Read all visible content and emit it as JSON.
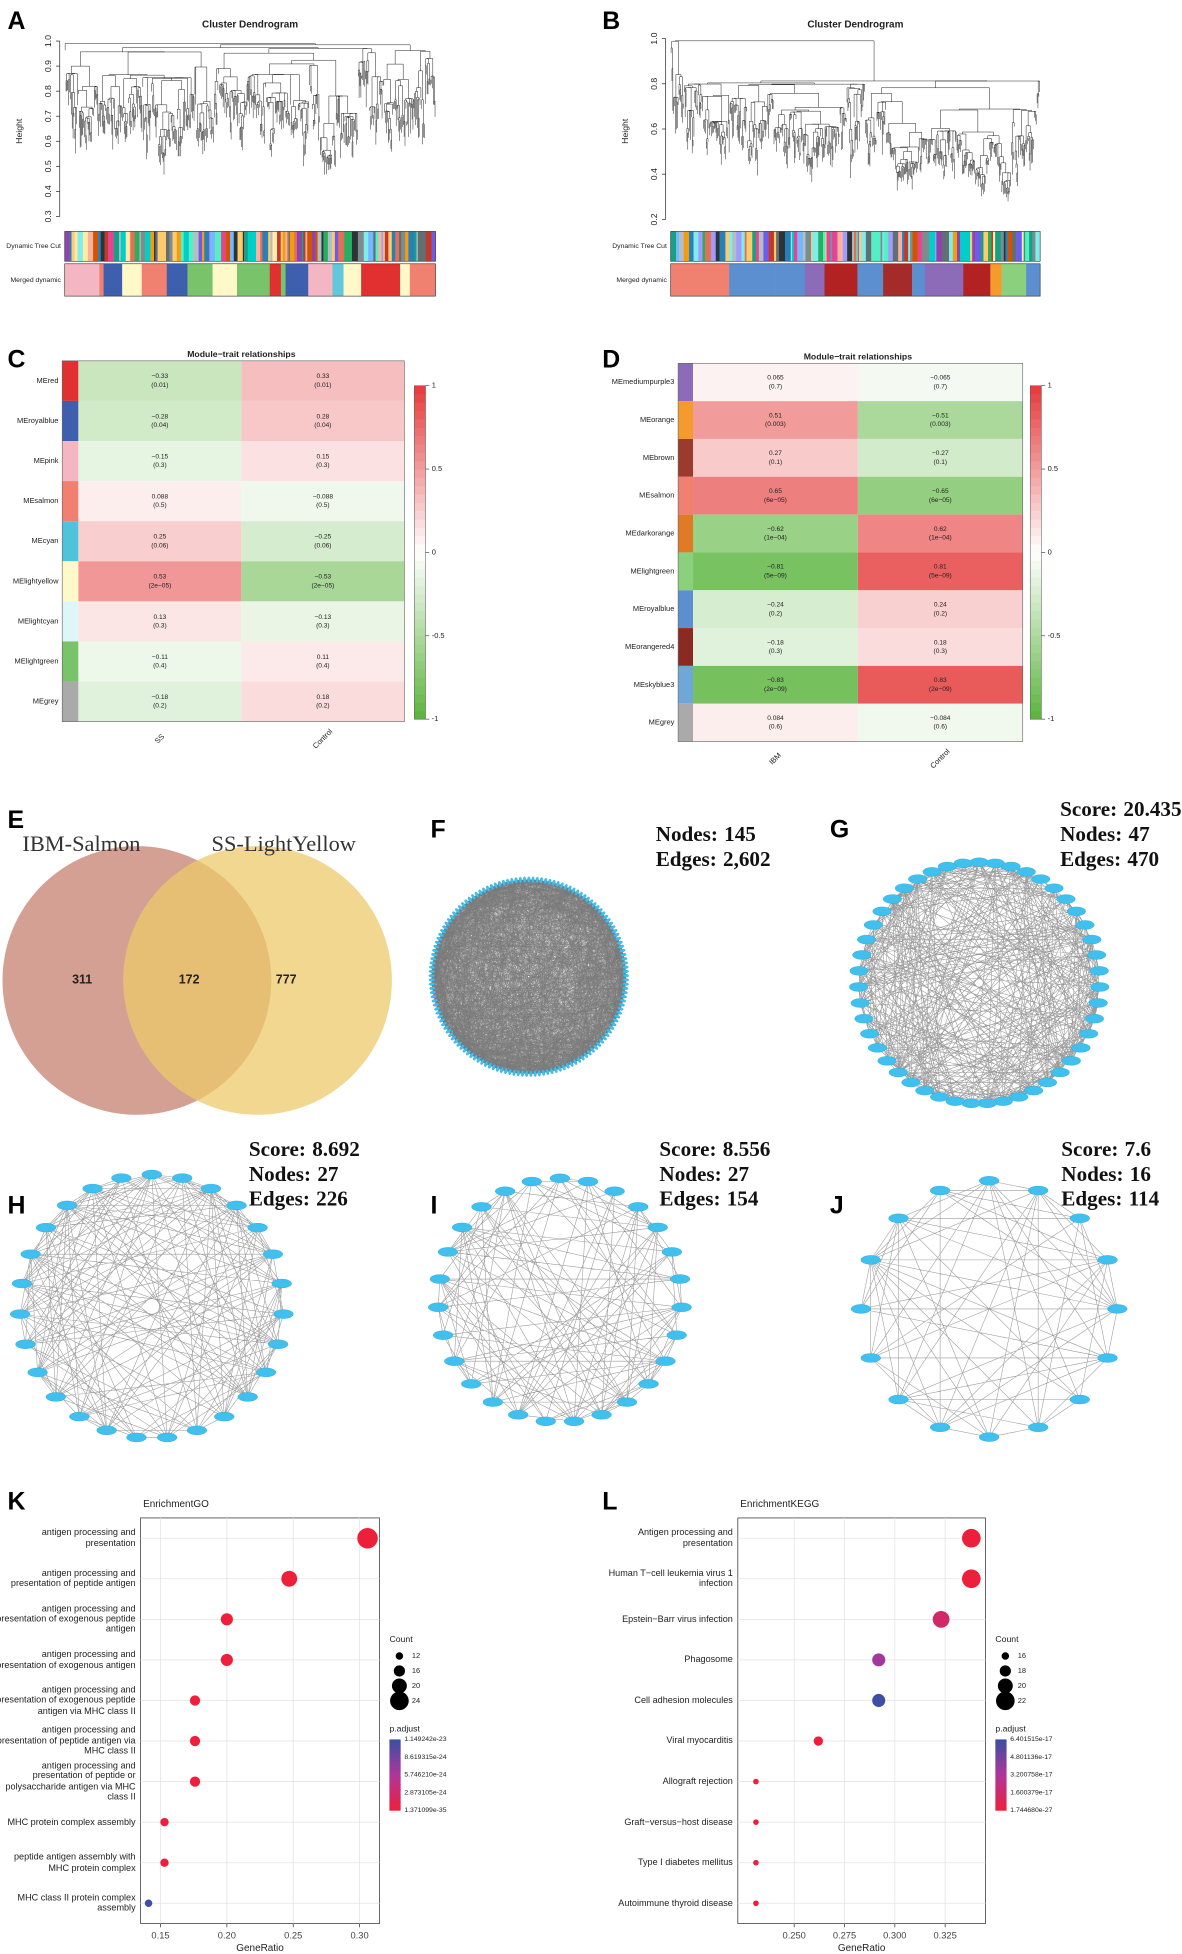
{
  "panels": [
    "A",
    "B",
    "C",
    "D",
    "E",
    "F",
    "G",
    "H",
    "I",
    "J",
    "K",
    "L"
  ],
  "dendrograms": [
    {
      "title": "Cluster Dendrogram",
      "ylabel": "Height",
      "ylim": [
        0.28,
        1.0
      ],
      "yticks": [
        0.3,
        0.4,
        0.5,
        0.6,
        0.7,
        0.8,
        0.9,
        {
          "value": 1.0,
          "label": "1.0"
        }
      ],
      "rows": [
        "Dynamic Tree Cut",
        "Merged dynamic"
      ]
    },
    {
      "title": "Cluster Dendrogram",
      "ylabel": "Height",
      "ylim": [
        0.18,
        1.0
      ],
      "yticks": [
        0.2,
        0.4,
        0.6,
        0.8,
        {
          "value": 1.0,
          "label": "1.0"
        }
      ],
      "rows": [
        "Dynamic Tree Cut",
        "Merged dynamic"
      ]
    }
  ],
  "chart_data": [
    {
      "type": "heatmap",
      "title": "Module−trait relationships",
      "rows": [
        "MEred",
        "MEroyalblue",
        "MEpink",
        "MEsalmon",
        "MEcyan",
        "MElightyellow",
        "MElightcyan",
        "MElightgreen",
        "MEgrey"
      ],
      "row_colors": [
        "#e0302f",
        "#3d5fae",
        "#f4b6c2",
        "#f08070",
        "#4ec3d9",
        "#fff8c8",
        "#dff6f8",
        "#79c36a",
        "#aaaaaa"
      ],
      "columns": [
        "SS",
        "Control"
      ],
      "values": [
        [
          -0.33,
          0.33
        ],
        [
          -0.28,
          0.28
        ],
        [
          -0.15,
          0.15
        ],
        [
          0.088,
          -0.088
        ],
        [
          0.25,
          -0.25
        ],
        [
          0.53,
          -0.53
        ],
        [
          0.13,
          -0.13
        ],
        [
          -0.11,
          0.11
        ],
        [
          -0.18,
          0.18
        ]
      ],
      "value_labels": [
        [
          "−0.33",
          "0.33"
        ],
        [
          "−0.28",
          "0.28"
        ],
        [
          "−0.15",
          "0.15"
        ],
        [
          "0.088",
          "−0.088"
        ],
        [
          "0.25",
          "−0.25"
        ],
        [
          "0.53",
          "−0.53"
        ],
        [
          "0.13",
          "−0.13"
        ],
        [
          "−0.11",
          "0.11"
        ],
        [
          "−0.18",
          "0.18"
        ]
      ],
      "p_labels": [
        [
          "(0.01)",
          "(0.01)"
        ],
        [
          "(0.04)",
          "(0.04)"
        ],
        [
          "(0.3)",
          "(0.3)"
        ],
        [
          "(0.5)",
          "(0.5)"
        ],
        [
          "(0.06)",
          "(0.06)"
        ],
        [
          "(2e−05)",
          "(2e−05)"
        ],
        [
          "(0.3)",
          "(0.3)"
        ],
        [
          "(0.4)",
          "(0.4)"
        ],
        [
          "(0.2)",
          "(0.2)"
        ]
      ],
      "zlim": [
        -1,
        1
      ],
      "zticks": [
        1,
        0.5,
        0,
        -0.5,
        -1
      ]
    },
    {
      "type": "heatmap",
      "title": "Module−trait relationships",
      "rows": [
        "MEmediumpurple3",
        "MEorange",
        "MEbrown",
        "MEsalmon",
        "MEdarkorange",
        "MElightgreen",
        "MEroyalblue",
        "MEorangered4",
        "MEskyblue3",
        "MEgrey"
      ],
      "row_colors": [
        "#8c6bb8",
        "#f59a2d",
        "#9c3a2e",
        "#f08070",
        "#e07a24",
        "#8bd07c",
        "#5b8fd0",
        "#8b2a23",
        "#6fa8d8",
        "#aaaaaa"
      ],
      "columns": [
        "IBM",
        "Control"
      ],
      "values": [
        [
          0.065,
          -0.065
        ],
        [
          0.51,
          -0.51
        ],
        [
          0.27,
          -0.27
        ],
        [
          0.65,
          -0.65
        ],
        [
          -0.62,
          0.62
        ],
        [
          -0.81,
          0.81
        ],
        [
          -0.24,
          0.24
        ],
        [
          -0.18,
          0.18
        ],
        [
          -0.83,
          0.83
        ],
        [
          0.084,
          -0.084
        ]
      ],
      "value_labels": [
        [
          "0.065",
          "−0.065"
        ],
        [
          "0.51",
          "−0.51"
        ],
        [
          "0.27",
          "−0.27"
        ],
        [
          "0.65",
          "−0.65"
        ],
        [
          "−0.62",
          "0.62"
        ],
        [
          "−0.81",
          "0.81"
        ],
        [
          "−0.24",
          "0.24"
        ],
        [
          "−0.18",
          "0.18"
        ],
        [
          "−0.83",
          "0.83"
        ],
        [
          "0.084",
          "−0.084"
        ]
      ],
      "p_labels": [
        [
          "(0.7)",
          "(0.7)"
        ],
        [
          "(0.003)",
          "(0.003)"
        ],
        [
          "(0.1)",
          "(0.1)"
        ],
        [
          "(6e−05)",
          "(6e−05)"
        ],
        [
          "(1e−04)",
          "(1e−04)"
        ],
        [
          "(5e−09)",
          "(5e−09)"
        ],
        [
          "(0.2)",
          "(0.2)"
        ],
        [
          "(0.3)",
          "(0.3)"
        ],
        [
          "(2e−09)",
          "(2e−09)"
        ],
        [
          "(0.6)",
          "(0.6)"
        ]
      ],
      "zlim": [
        -1,
        1
      ],
      "zticks": [
        1,
        0.5,
        0,
        -0.5,
        -1
      ]
    },
    {
      "type": "venn",
      "sets": [
        {
          "name": "IBM-Salmon",
          "color": "#c4806f",
          "value": 311
        },
        {
          "name": "SS-LightYellow",
          "color": "#ecc96b",
          "value": 777
        }
      ],
      "intersection": 172
    },
    {
      "type": "dot",
      "title": "EnrichmentGO",
      "xlabel": "GeneRatio",
      "categories": [
        "antigen processing and presentation",
        "antigen processing and presentation of peptide antigen",
        "antigen processing and presentation of exogenous peptide antigen",
        "antigen processing and presentation of exogenous antigen",
        "antigen processing and presentation of exogenous peptide antigen via MHC class II",
        "antigen processing and presentation of peptide antigen via MHC class II",
        "antigen processing and presentation of peptide or polysaccharide antigen via MHC class II",
        "MHC protein complex assembly",
        "peptide antigen assembly with MHC protein complex",
        "MHC class II protein complex assembly"
      ],
      "values": [
        0.306,
        0.247,
        0.2,
        0.2,
        0.176,
        0.176,
        0.176,
        0.153,
        0.153,
        0.141
      ],
      "counts": [
        26,
        21,
        17,
        17,
        15,
        15,
        15,
        13,
        13,
        12
      ],
      "p_adjust": [
        1.4e-35,
        2e-30,
        5e-28,
        5e-28,
        1e-26,
        1e-26,
        1e-26,
        2e-25,
        2e-25,
        1.1e-23
      ],
      "xlim": [
        0.135,
        0.315
      ],
      "xticks": [
        0.15,
        {
          "value": 0.2,
          "label": "0.20"
        },
        0.25,
        {
          "value": 0.3,
          "label": "0.30"
        }
      ],
      "count_title": "Count",
      "count_ticks": [
        12,
        16,
        20,
        24
      ],
      "p_title": "p.adjust",
      "p_ticks": [
        1.149242e-23,
        8.619315e-24,
        {
          "value": 5.74621e-24,
          "label": "5.746210e-24"
        },
        2.873105e-24,
        1.371099e-35
      ],
      "grid": true
    },
    {
      "type": "dot",
      "title": "EnrichmentKEGG",
      "xlabel": "GeneRatio",
      "categories": [
        "Antigen processing and presentation",
        "Human T−cell leukemia virus 1 infection",
        "Epstein−Barr virus infection",
        "Phagosome",
        "Cell adhesion molecules",
        "Viral myocarditis",
        "Allograft rejection",
        "Graft−versus−host disease",
        "Type I diabetes mellitus",
        "Autoimmune thyroid disease"
      ],
      "values": [
        0.338,
        0.338,
        0.323,
        0.292,
        0.292,
        0.262,
        0.231,
        0.231,
        0.231,
        0.231
      ],
      "counts": [
        22,
        22,
        21,
        19,
        19,
        17,
        15,
        15,
        15,
        15
      ],
      "p_adjust": [
        1e-25,
        1e-25,
        1.5e-17,
        3.6e-17,
        6.3e-17,
        5e-21,
        1e-25,
        1e-25,
        1e-25,
        1e-25
      ],
      "xlim": [
        0.222,
        0.345
      ],
      "xticks": [
        {
          "value": 0.25,
          "label": "0.250"
        },
        0.275,
        {
          "value": 0.3,
          "label": "0.300"
        },
        0.325
      ],
      "count_title": "Count",
      "count_ticks": [
        16,
        18,
        20,
        22
      ],
      "p_title": "p.adjust",
      "p_ticks": [
        6.401515e-17,
        4.801136e-17,
        3.200758e-17,
        1.600379e-17,
        {
          "value": 1.74468e-27,
          "label": "1.744680e-27"
        }
      ],
      "grid": true
    }
  ],
  "networks": [
    {
      "nodes": {
        "label": "Nodes:",
        "value": 145
      },
      "edges": {
        "label": "Edges:",
        "value": 2602,
        "value_label": "2,602"
      }
    },
    {
      "score": {
        "label": "Score:",
        "value": 20.435
      },
      "nodes": {
        "label": "Nodes:",
        "value": 47
      },
      "edges": {
        "label": "Edges:",
        "value": 470
      }
    },
    {
      "score": {
        "label": "Score:",
        "value": 8.692
      },
      "nodes": {
        "label": "Nodes:",
        "value": 27
      },
      "edges": {
        "label": "Edges:",
        "value": 226
      }
    },
    {
      "score": {
        "label": "Score:",
        "value": 8.556
      },
      "nodes": {
        "label": "Nodes:",
        "value": 27
      },
      "edges": {
        "label": "Edges:",
        "value": 154
      }
    },
    {
      "score": {
        "label": "Score:",
        "value": 7.6
      },
      "nodes": {
        "label": "Nodes:",
        "value": 16
      },
      "edges": {
        "label": "Edges:",
        "value": 114
      }
    }
  ]
}
